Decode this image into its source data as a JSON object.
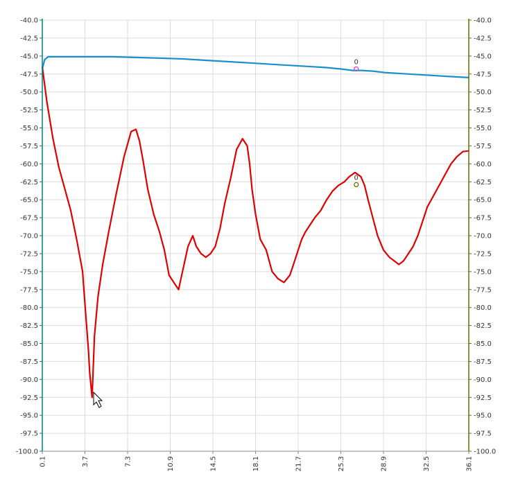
{
  "chart_data": {
    "type": "line",
    "title": "",
    "xlabel": "",
    "ylabel": "",
    "xlim": [
      0.1,
      36.1
    ],
    "ylim": [
      -100.0,
      -40.0
    ],
    "x_ticks": [
      "0.1",
      "3.7",
      "7.3",
      "10.9",
      "14.5",
      "18.1",
      "21.7",
      "25.3",
      "28.9",
      "32.5",
      "36.1"
    ],
    "y_ticks": [
      "-40.0",
      "-42.5",
      "-45.0",
      "-47.5",
      "-50.0",
      "-52.5",
      "-55.0",
      "-57.5",
      "-60.0",
      "-62.5",
      "-65.0",
      "-67.5",
      "-70.0",
      "-72.5",
      "-75.0",
      "-77.5",
      "-80.0",
      "-82.5",
      "-85.0",
      "-87.5",
      "-90.0",
      "-92.5",
      "-95.0",
      "-97.5",
      "-100.0"
    ],
    "grid": true,
    "axis_colors": {
      "left": "#008080",
      "right": "#6b6b00"
    },
    "series": [
      {
        "color": "#1a8fc9",
        "x": [
          0.1,
          0.3,
          0.6,
          2,
          4,
          6,
          8,
          10,
          12,
          14,
          16,
          18,
          20,
          22,
          24,
          25.3,
          26.3,
          27,
          28,
          29,
          30,
          31,
          32,
          33,
          34,
          35,
          36.1
        ],
        "y": [
          -46.8,
          -45.5,
          -45.1,
          -45.1,
          -45.1,
          -45.1,
          -45.2,
          -45.3,
          -45.4,
          -45.6,
          -45.8,
          -46.0,
          -46.2,
          -46.4,
          -46.6,
          -46.8,
          -47.0,
          -47.0,
          -47.1,
          -47.3,
          -47.4,
          -47.5,
          -47.6,
          -47.7,
          -47.8,
          -47.9,
          -48.0
        ],
        "marker": {
          "x": 26.6,
          "y": -46.8,
          "label": "0",
          "color": "#cc44cc"
        }
      },
      {
        "color": "#e00000",
        "x": [
          0.1,
          0.5,
          1.0,
          1.5,
          2.0,
          2.5,
          3.0,
          3.5,
          3.7,
          4.0,
          4.1,
          4.3,
          4.5,
          4.8,
          5.2,
          5.7,
          6.3,
          7.0,
          7.6,
          8.0,
          8.3,
          8.6,
          9.0,
          9.5,
          10.0,
          10.4,
          10.8,
          11.2,
          11.6,
          12.0,
          12.4,
          12.8,
          13.1,
          13.5,
          13.9,
          14.3,
          14.7,
          15.1,
          15.5,
          16.0,
          16.5,
          17.0,
          17.4,
          17.6,
          17.8,
          18.1,
          18.5,
          19.0,
          19.5,
          20.0,
          20.5,
          21.0,
          21.3,
          21.7,
          22.0,
          22.3,
          22.7,
          23.1,
          23.6,
          24.1,
          24.6,
          25.1,
          25.6,
          26.0,
          26.5,
          27.0,
          27.3,
          27.6,
          28.0,
          28.4,
          28.9,
          29.4,
          29.8,
          30.2,
          30.6,
          31.0,
          31.4,
          31.8,
          32.2,
          32.6,
          33.1,
          33.6,
          34.1,
          34.6,
          35.1,
          35.6,
          36.1
        ],
        "y": [
          -46.5,
          -51.5,
          -56.5,
          -60.5,
          -63.5,
          -66.5,
          -70.5,
          -75.0,
          -79.5,
          -86.0,
          -89.0,
          -92.5,
          -84.0,
          -78.5,
          -74.0,
          -69.5,
          -64.5,
          -59.0,
          -55.5,
          -55.2,
          -56.8,
          -59.5,
          -63.5,
          -67.0,
          -69.5,
          -72.0,
          -75.5,
          -76.5,
          -77.5,
          -74.5,
          -71.5,
          -70.0,
          -71.5,
          -72.5,
          -73.0,
          -72.5,
          -71.5,
          -69.0,
          -65.5,
          -62.0,
          -58.0,
          -56.5,
          -57.5,
          -60.0,
          -63.5,
          -67.0,
          -70.5,
          -72.0,
          -75.0,
          -76.0,
          -76.5,
          -75.5,
          -74.0,
          -72.0,
          -70.5,
          -69.5,
          -68.5,
          -67.5,
          -66.5,
          -65.0,
          -63.8,
          -63.0,
          -62.5,
          -61.8,
          -61.2,
          -61.8,
          -63.0,
          -65.0,
          -67.5,
          -70.0,
          -72.0,
          -73.0,
          -73.5,
          -74.0,
          -73.5,
          -72.5,
          -71.5,
          -70.0,
          -68.0,
          -66.0,
          -64.5,
          -63.0,
          -61.5,
          -60.0,
          -59.0,
          -58.3,
          -58.2
        ],
        "marker": {
          "x": 26.6,
          "y": -62.9,
          "label": "0",
          "color": "#6b6b00"
        }
      }
    ]
  }
}
